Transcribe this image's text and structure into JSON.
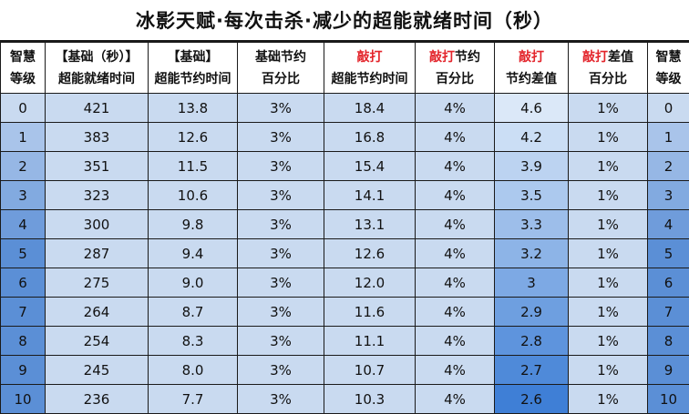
{
  "title": "冰影天赋·每次击杀·减少的超能就绪时间（秒）",
  "header": [
    [
      {
        "text": "智慧",
        "red": false
      },
      {
        "text": "等级",
        "red": false
      }
    ],
    [
      {
        "text": "【基础（秒）】",
        "red": false
      },
      {
        "text": "超能就绪时间",
        "red": false
      }
    ],
    [
      {
        "text": "【基础】",
        "red": false
      },
      {
        "text": "超能节约时间",
        "red": false
      }
    ],
    [
      {
        "text": "基础节约",
        "red": false
      },
      {
        "text": "百分比",
        "red": false
      }
    ],
    [
      {
        "text": "敲打",
        "red": true
      },
      {
        "text": "超能节约时间",
        "red": false
      }
    ],
    [
      {
        "text": "敲打",
        "red": true,
        "suffix": "节约"
      },
      {
        "text": "百分比",
        "red": false
      }
    ],
    [
      {
        "text": "敲打",
        "red": true
      },
      {
        "text": "节约差值",
        "red": false
      }
    ],
    [
      {
        "text": "敲打",
        "red": true,
        "suffix": "差值"
      },
      {
        "text": "百分比",
        "red": false
      }
    ],
    [
      {
        "text": "智慧",
        "red": false
      },
      {
        "text": "等级",
        "red": false
      }
    ]
  ],
  "rows": [
    [
      "0",
      "421",
      "13.8",
      "3%",
      "18.4",
      "4%",
      "4.6",
      "1%",
      "0"
    ],
    [
      "1",
      "383",
      "12.6",
      "3%",
      "16.8",
      "4%",
      "4.2",
      "1%",
      "1"
    ],
    [
      "2",
      "351",
      "11.5",
      "3%",
      "15.4",
      "4%",
      "3.9",
      "1%",
      "2"
    ],
    [
      "3",
      "323",
      "10.6",
      "3%",
      "14.1",
      "4%",
      "3.5",
      "1%",
      "3"
    ],
    [
      "4",
      "300",
      "9.8",
      "3%",
      "13.1",
      "4%",
      "3.3",
      "1%",
      "4"
    ],
    [
      "5",
      "287",
      "9.4",
      "3%",
      "12.6",
      "4%",
      "3.2",
      "1%",
      "5"
    ],
    [
      "6",
      "275",
      "9.0",
      "3%",
      "12.0",
      "4%",
      "3",
      "1%",
      "6"
    ],
    [
      "7",
      "264",
      "8.7",
      "3%",
      "11.6",
      "4%",
      "2.9",
      "1%",
      "7"
    ],
    [
      "8",
      "254",
      "8.3",
      "3%",
      "11.1",
      "4%",
      "2.8",
      "1%",
      "8"
    ],
    [
      "9",
      "245",
      "8.0",
      "3%",
      "10.7",
      "4%",
      "2.7",
      "1%",
      "9"
    ],
    [
      "10",
      "236",
      "7.7",
      "3%",
      "10.3",
      "4%",
      "2.6",
      "1%",
      "10"
    ]
  ],
  "colors": {
    "cell_light": "#c9daf0",
    "level_dark": "#5b8fd6",
    "diff_light": "#dbe8f8",
    "diff_dark": "#3f7fd6",
    "accent_red": "#e3242b"
  }
}
